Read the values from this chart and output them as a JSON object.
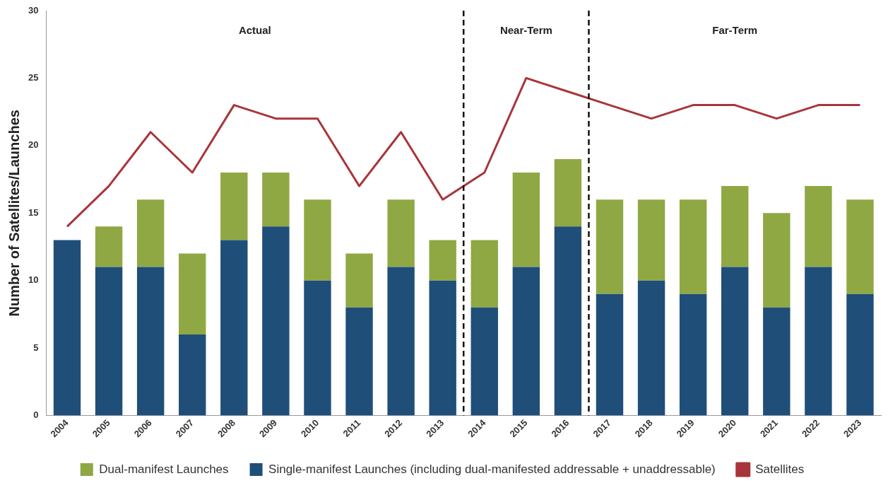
{
  "chart_data": {
    "type": "bar",
    "stacked": true,
    "ylabel": "Number of Satellites/Launches",
    "x": [
      2004,
      2005,
      2006,
      2007,
      2008,
      2009,
      2010,
      2011,
      2012,
      2013,
      2014,
      2015,
      2016,
      2017,
      2018,
      2019,
      2020,
      2021,
      2022,
      2023
    ],
    "xlim": [
      2003.5,
      2023.5
    ],
    "xticks": [
      2004,
      2005,
      2006,
      2007,
      2008,
      2009,
      2010,
      2011,
      2012,
      2013,
      2014,
      2015,
      2016,
      2017,
      2018,
      2019,
      2020,
      2021,
      2022,
      2023
    ],
    "series": [
      {
        "name": "Single-manifest Launches (including dual-manifested addressable + unaddressable)",
        "color": "#1f4e79",
        "values": [
          13,
          11,
          11,
          6,
          13,
          14,
          10,
          8,
          11,
          10,
          8,
          11,
          14,
          9,
          10,
          9,
          11,
          8,
          11,
          9
        ]
      },
      {
        "name": "Dual-manifest Launches",
        "color": "#8fa843",
        "values": [
          0,
          3,
          5,
          6,
          5,
          4,
          6,
          4,
          5,
          3,
          5,
          7,
          5,
          7,
          6,
          7,
          6,
          7,
          6,
          7
        ]
      },
      {
        "name": "Satellites",
        "type": "line",
        "color": "#a8353a",
        "values": [
          14,
          17,
          21,
          18,
          23,
          22,
          22,
          17,
          21,
          16,
          18,
          25,
          24,
          23,
          22,
          23,
          23,
          22,
          23,
          23
        ]
      }
    ],
    "ylim": [
      0,
      30
    ],
    "yticks": [
      0,
      5,
      10,
      15,
      20,
      25,
      30
    ],
    "ref_lines": [
      {
        "axis": "x",
        "value": 2013.5,
        "line_style": "dashed",
        "color": "#111111"
      },
      {
        "axis": "x",
        "value": 2016.5,
        "line_style": "dashed",
        "color": "#111111"
      }
    ],
    "annotations": [
      "Actual",
      "Near-Term",
      "Far-Term"
    ],
    "legend": "bottom",
    "grid": false,
    "marker": "none",
    "line_style": "solid"
  }
}
